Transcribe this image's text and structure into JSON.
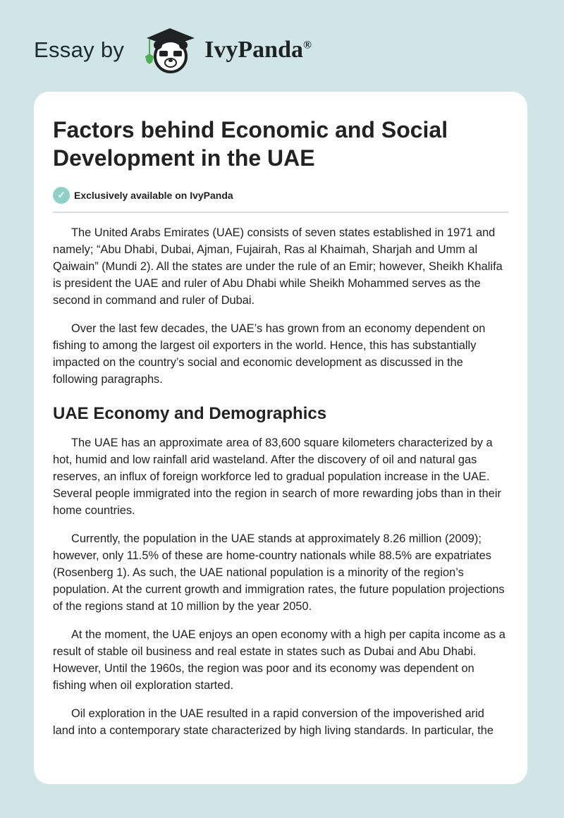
{
  "brand": {
    "prefix": "Essay by",
    "name": "IvyPanda",
    "registered": "®"
  },
  "article": {
    "title": "Factors behind Economic and Social Development in the UAE",
    "badge": "Exclusively available on IvyPanda",
    "intro": [
      "The United Arabs Emirates (UAE) consists of seven states established in 1971 and namely; “Abu Dhabi, Dubai, Ajman, Fujairah, Ras al Khaimah, Sharjah and Umm al Qaiwain” (Mundi 2). All the states are under the rule of an Emir; however, Sheikh Khalifa is president the UAE and ruler of Abu Dhabi while Sheikh Mohammed serves as the second in command and ruler of Dubai.",
      "Over the last few decades, the UAE’s has grown from an economy dependent on fishing to among the largest oil exporters in the world. Hence, this has substantially impacted on the country’s social and economic development as discussed in the following paragraphs."
    ],
    "section_heading": "UAE Economy and Demographics",
    "section": [
      "The UAE has an approximate area of 83,600 square kilometers characterized by a hot, humid and low rainfall arid wasteland. After the discovery of oil and natural gas reserves, an influx of foreign workforce led to gradual population increase in the UAE. Several people immigrated into the region in search of more rewarding jobs than in their home countries.",
      "Currently, the population in the UAE stands at approximately 8.26 million (2009); however, only 11.5% of these are home-country nationals while 88.5% are expatriates (Rosenberg 1). As such, the UAE national population is a minority of the region’s population. At the current growth and immigration rates, the future population projections of the regions stand at 10 million by the year 2050.",
      "At the moment, the UAE enjoys an open economy with a high per capita income as a result of stable oil business and real estate in states such as Dubai and Abu Dhabi. However, Until the 1960s, the region was poor and its economy was dependent on fishing when oil exploration started.",
      "Oil exploration in the UAE resulted in a rapid conversion of the impoverished arid land into a contemporary state characterized by high living standards. In particular, the"
    ]
  }
}
